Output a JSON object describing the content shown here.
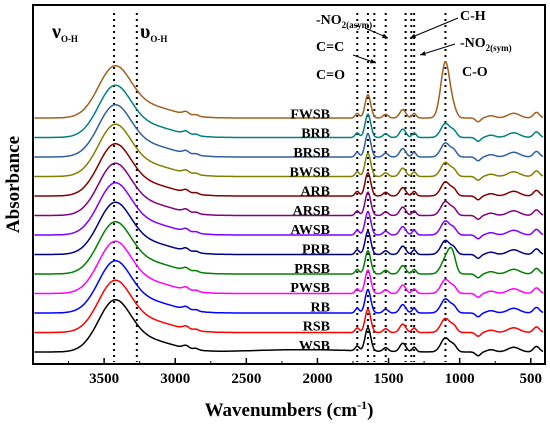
{
  "chart_data": {
    "type": "line",
    "title": "",
    "xlabel": "Wavenumbers (cm",
    "xlabel_sup": "-1",
    "xlabel_close": ")",
    "ylabel": "Absorbance",
    "xlim": [
      4000,
      400
    ],
    "x_reversed": true,
    "y_ticks_shown": false,
    "grid": false,
    "legend": "none",
    "x_ticks": [
      3500,
      3000,
      2500,
      2000,
      1500,
      1000,
      500
    ],
    "x_tick_labels": [
      "3500",
      "3000",
      "2500",
      "2000",
      "1500",
      "1000",
      "500"
    ],
    "reference_lines": [
      3430,
      3270,
      1720,
      1645,
      1600,
      1520,
      1380,
      1340,
      1320,
      1100
    ],
    "annotations": [
      {
        "key": "voh1",
        "text": "ν",
        "sub": "O-H"
      },
      {
        "key": "voh2",
        "text": "υ",
        "sub": "O-H"
      },
      {
        "key": "no2a",
        "text": "-NO",
        "sub": "2(asym)"
      },
      {
        "key": "cc",
        "text": "C=C",
        "sub": ""
      },
      {
        "key": "co1",
        "text": "C=O",
        "sub": ""
      },
      {
        "key": "ch",
        "text": "C-H",
        "sub": ""
      },
      {
        "key": "no2s",
        "text": "-NO",
        "sub": "2(sym)"
      },
      {
        "key": "co2",
        "text": "C-O",
        "sub": ""
      }
    ],
    "series": [
      {
        "name": "WSB",
        "color": "#000000",
        "offset": 0
      },
      {
        "name": "RSB",
        "color": "#ff0000",
        "offset": 1
      },
      {
        "name": "RB",
        "color": "#0000ff",
        "offset": 2
      },
      {
        "name": "PWSB",
        "color": "#ff00ff",
        "offset": 3
      },
      {
        "name": "PRSB",
        "color": "#008000",
        "offset": 4
      },
      {
        "name": "PRB",
        "color": "#000080",
        "offset": 5
      },
      {
        "name": "AWSB",
        "color": "#8000ff",
        "offset": 6
      },
      {
        "name": "ARSB",
        "color": "#800080",
        "offset": 7
      },
      {
        "name": "ARB",
        "color": "#800000",
        "offset": 8
      },
      {
        "name": "BWSB",
        "color": "#808000",
        "offset": 9
      },
      {
        "name": "BRSB",
        "color": "#3060a0",
        "offset": 10
      },
      {
        "name": "BRB",
        "color": "#008080",
        "offset": 11
      },
      {
        "name": "FWSB",
        "color": "#a06020",
        "offset": 12
      }
    ]
  }
}
